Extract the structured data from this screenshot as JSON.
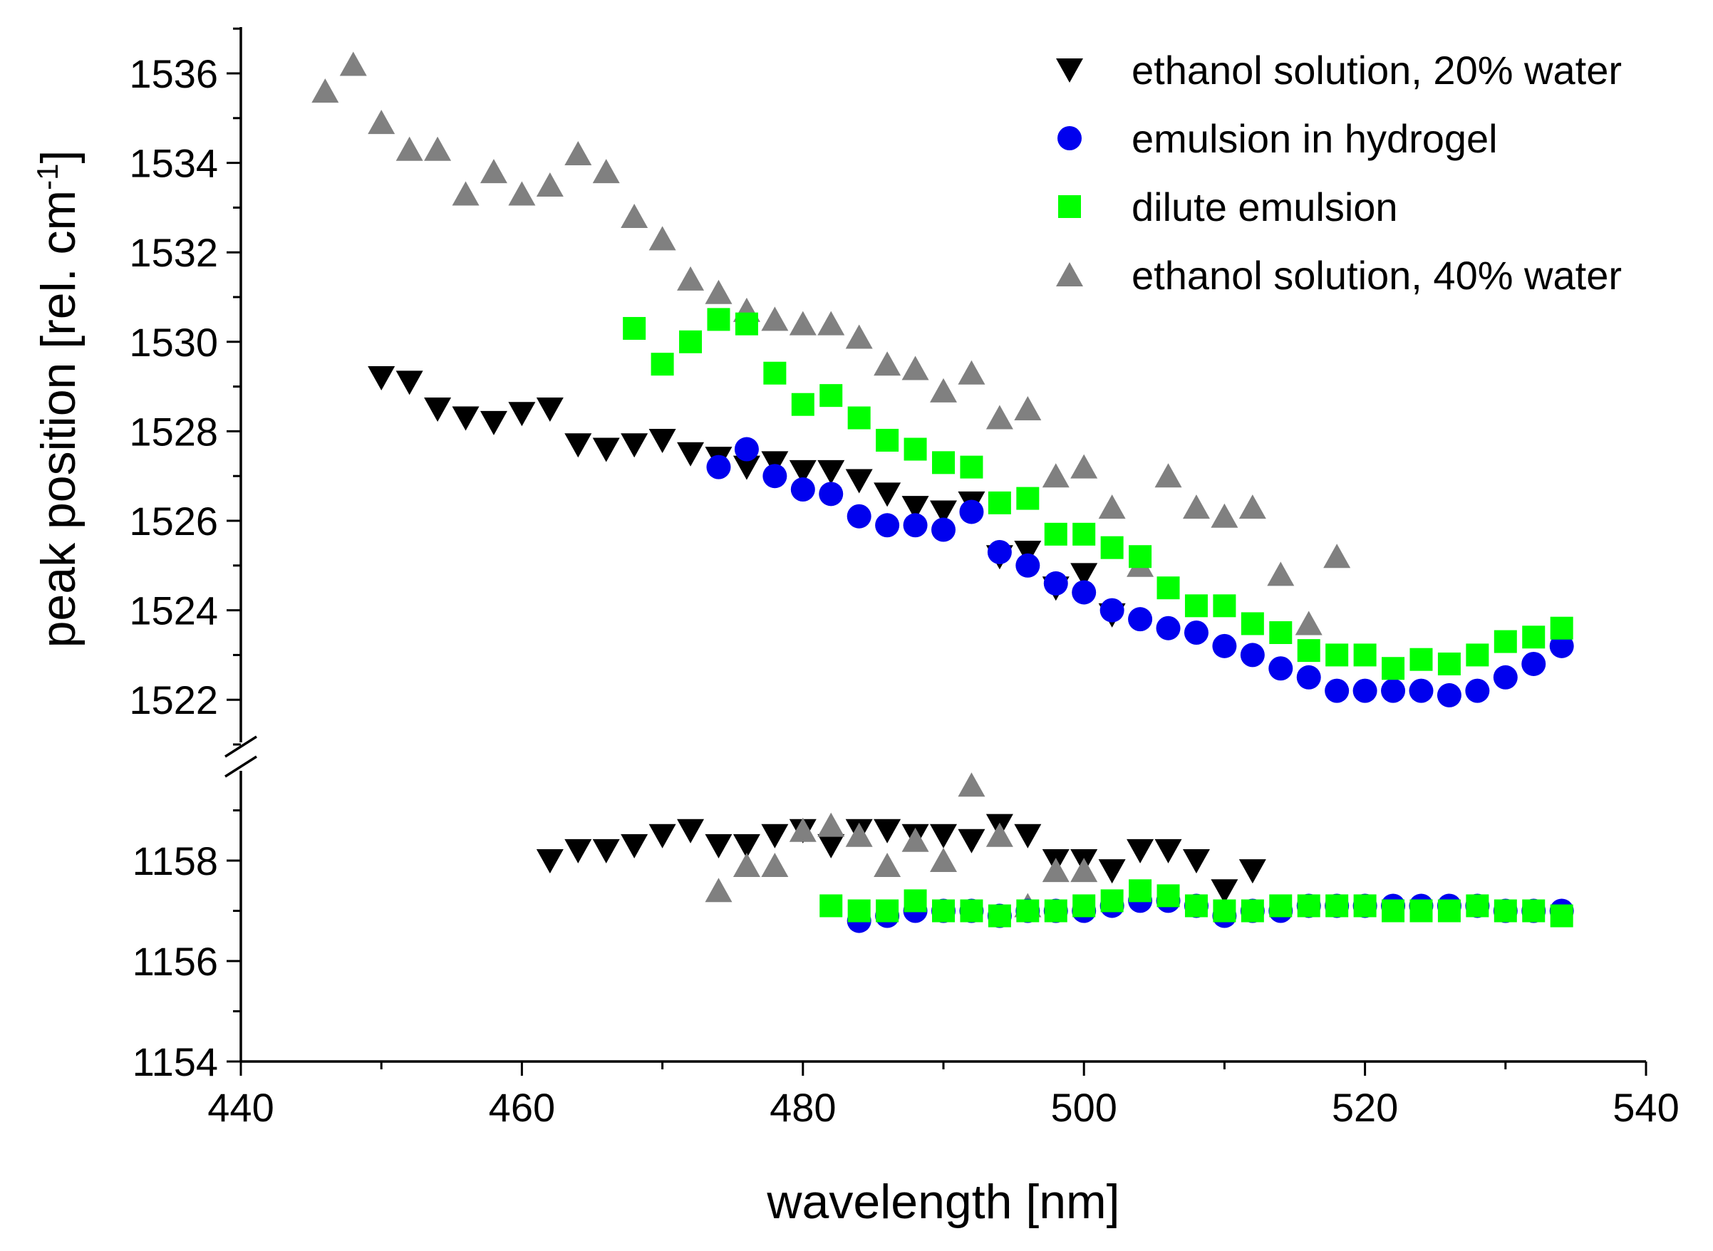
{
  "chart_data": {
    "type": "scatter",
    "xlabel": "wavelength [nm]",
    "ylabel": "peak position [rel. cm",
    "ylabel_superscript": "-1",
    "ylabel_suffix": "]",
    "xlim": [
      440,
      540
    ],
    "x_ticks": [
      "440",
      "460",
      "480",
      "500",
      "520",
      "540"
    ],
    "y_axis_break": true,
    "ylim_upper": [
      1521,
      1537
    ],
    "ylim_lower": [
      1154,
      1160
    ],
    "y_ticks_upper": [
      "1522",
      "1524",
      "1526",
      "1528",
      "1530",
      "1532",
      "1534",
      "1536"
    ],
    "y_ticks_lower": [
      "1154",
      "1156",
      "1158"
    ],
    "legend_position": "top-right",
    "series": [
      {
        "name": "ethanol solution, 20% water",
        "marker": "triangle-down",
        "color": "#000000",
        "upper": {
          "x": [
            450,
            452,
            454,
            456,
            458,
            460,
            462,
            464,
            466,
            468,
            470,
            472,
            474,
            476,
            478,
            480,
            482,
            484,
            486,
            488,
            490,
            492,
            494,
            496,
            498,
            500,
            502
          ],
          "y": [
            1529.2,
            1529.1,
            1528.5,
            1528.3,
            1528.2,
            1528.4,
            1528.5,
            1527.7,
            1527.6,
            1527.7,
            1527.8,
            1527.5,
            1527.4,
            1527.2,
            1527.3,
            1527.1,
            1527.1,
            1526.9,
            1526.6,
            1526.3,
            1526.2,
            1526.4,
            1525.2,
            1525.3,
            1524.5,
            1524.8,
            1523.9
          ]
        },
        "lower": {
          "x": [
            462,
            464,
            466,
            468,
            470,
            472,
            474,
            476,
            478,
            480,
            482,
            484,
            486,
            488,
            490,
            492,
            494,
            496,
            498,
            500,
            502,
            504,
            506,
            508,
            510,
            512
          ],
          "y": [
            1158.0,
            1158.2,
            1158.2,
            1158.3,
            1158.5,
            1158.6,
            1158.3,
            1158.3,
            1158.5,
            1158.6,
            1158.3,
            1158.6,
            1158.6,
            1158.5,
            1158.5,
            1158.4,
            1158.7,
            1158.5,
            1158.0,
            1158.0,
            1157.8,
            1158.2,
            1158.2,
            1158.0,
            1157.4,
            1157.8
          ]
        }
      },
      {
        "name": "emulsion in hydrogel",
        "marker": "circle",
        "color": "#0000ee",
        "upper": {
          "x": [
            474,
            476,
            478,
            480,
            482,
            484,
            486,
            488,
            490,
            492,
            494,
            496,
            498,
            500,
            502,
            504,
            506,
            508,
            510,
            512,
            514,
            516,
            518,
            520,
            522,
            524,
            526,
            528,
            530,
            532,
            534
          ],
          "y": [
            1527.2,
            1527.6,
            1527.0,
            1526.7,
            1526.6,
            1526.1,
            1525.9,
            1525.9,
            1525.8,
            1526.2,
            1525.3,
            1525.0,
            1524.6,
            1524.4,
            1524.0,
            1523.8,
            1523.6,
            1523.5,
            1523.2,
            1523.0,
            1522.7,
            1522.5,
            1522.2,
            1522.2,
            1522.2,
            1522.2,
            1522.1,
            1522.2,
            1522.5,
            1522.8,
            1523.2
          ]
        },
        "lower": {
          "x": [
            484,
            486,
            488,
            490,
            492,
            494,
            496,
            498,
            500,
            502,
            504,
            506,
            508,
            510,
            512,
            514,
            516,
            518,
            520,
            522,
            524,
            526,
            528,
            530,
            532,
            534
          ],
          "y": [
            1156.8,
            1156.9,
            1157.0,
            1157.0,
            1157.0,
            1156.9,
            1157.0,
            1157.0,
            1157.0,
            1157.1,
            1157.2,
            1157.2,
            1157.1,
            1156.9,
            1157.0,
            1157.0,
            1157.1,
            1157.1,
            1157.1,
            1157.1,
            1157.1,
            1157.1,
            1157.1,
            1157.0,
            1157.0,
            1157.0
          ]
        }
      },
      {
        "name": "dilute emulsion",
        "marker": "square",
        "color": "#00ff00",
        "upper": {
          "x": [
            468,
            470,
            472,
            474,
            476,
            478,
            480,
            482,
            484,
            486,
            488,
            490,
            492,
            494,
            496,
            498,
            500,
            502,
            504,
            506,
            508,
            510,
            512,
            514,
            516,
            518,
            520,
            522,
            524,
            526,
            528,
            530,
            532,
            534
          ],
          "y": [
            1530.3,
            1529.5,
            1530.0,
            1530.5,
            1530.4,
            1529.3,
            1528.6,
            1528.8,
            1528.3,
            1527.8,
            1527.6,
            1527.3,
            1527.2,
            1526.4,
            1526.5,
            1525.7,
            1525.7,
            1525.4,
            1525.2,
            1524.5,
            1524.1,
            1524.1,
            1523.7,
            1523.5,
            1523.1,
            1523.0,
            1523.0,
            1522.7,
            1522.9,
            1522.8,
            1523.0,
            1523.3,
            1523.4,
            1523.6
          ]
        },
        "lower": {
          "x": [
            482,
            484,
            486,
            488,
            490,
            492,
            494,
            496,
            498,
            500,
            502,
            504,
            506,
            508,
            510,
            512,
            514,
            516,
            518,
            520,
            522,
            524,
            526,
            528,
            530,
            532,
            534
          ],
          "y": [
            1157.1,
            1157.0,
            1157.0,
            1157.2,
            1157.0,
            1157.0,
            1156.9,
            1157.0,
            1157.0,
            1157.1,
            1157.2,
            1157.4,
            1157.3,
            1157.1,
            1157.0,
            1157.0,
            1157.1,
            1157.1,
            1157.1,
            1157.1,
            1157.0,
            1157.0,
            1157.0,
            1157.1,
            1157.0,
            1157.0,
            1156.9
          ]
        }
      },
      {
        "name": "ethanol solution, 40% water",
        "marker": "triangle-up",
        "color": "#808080",
        "upper": {
          "x": [
            446,
            448,
            450,
            452,
            454,
            456,
            458,
            460,
            462,
            464,
            466,
            468,
            470,
            472,
            474,
            476,
            478,
            480,
            482,
            484,
            486,
            488,
            490,
            492,
            494,
            496,
            498,
            500,
            502,
            504,
            506,
            508,
            510,
            512,
            514,
            516,
            518
          ],
          "y": [
            1535.6,
            1536.2,
            1534.9,
            1534.3,
            1534.3,
            1533.3,
            1533.8,
            1533.3,
            1533.5,
            1534.2,
            1533.8,
            1532.8,
            1532.3,
            1531.4,
            1531.1,
            1530.7,
            1530.5,
            1530.4,
            1530.4,
            1530.1,
            1529.5,
            1529.4,
            1528.9,
            1529.3,
            1528.3,
            1528.5,
            1527.0,
            1527.2,
            1526.3,
            1525.0,
            1527.0,
            1526.3,
            1526.1,
            1526.3,
            1524.8,
            1523.7,
            1525.2
          ]
        },
        "lower": {
          "x": [
            474,
            476,
            478,
            480,
            482,
            484,
            486,
            488,
            490,
            492,
            494,
            496,
            498,
            500
          ],
          "y": [
            1157.4,
            1157.9,
            1157.9,
            1158.6,
            1158.7,
            1158.5,
            1157.9,
            1158.4,
            1158.0,
            1159.5,
            1158.5,
            1157.1,
            1157.8,
            1157.8
          ]
        }
      }
    ]
  }
}
